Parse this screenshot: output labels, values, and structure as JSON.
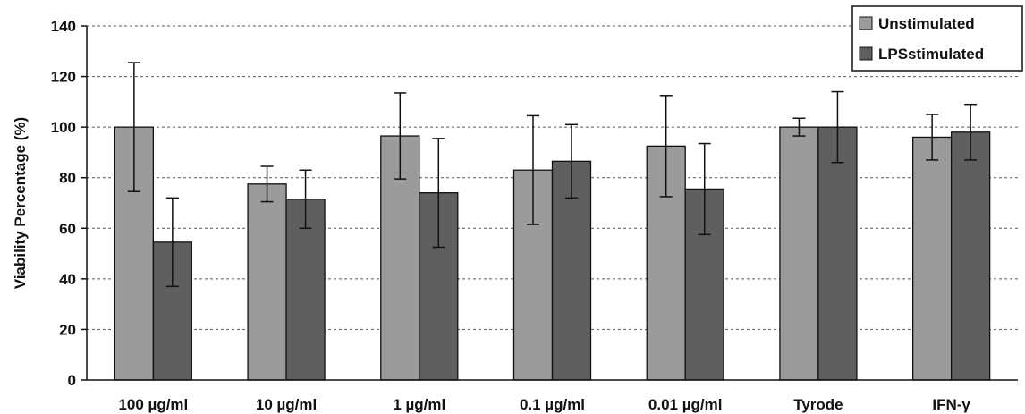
{
  "chart_data": {
    "type": "bar",
    "title": "",
    "xlabel": "",
    "ylabel": "Viability Percentage (%)",
    "ylim": [
      0,
      140
    ],
    "yticks": [
      0,
      20,
      40,
      60,
      80,
      100,
      120,
      140
    ],
    "grid": "horizontal dashed",
    "legend_position": "top-right",
    "categories": [
      "100 µg/ml",
      "10 µg/ml",
      "1 µg/ml",
      "0.1 µg/ml",
      "0.01 µg/ml",
      "Tyrode",
      "IFN-γ"
    ],
    "series": [
      {
        "name": "Unstimulated",
        "color": "#9b9b9b",
        "values": [
          100,
          77.5,
          96.5,
          83,
          92.5,
          100,
          96
        ],
        "errors": [
          25.5,
          7,
          17,
          21.5,
          20,
          3.5,
          9
        ]
      },
      {
        "name": "LPSstimulated",
        "color": "#5f5f5f",
        "values": [
          54.5,
          71.5,
          74,
          86.5,
          75.5,
          100,
          98
        ],
        "errors": [
          17.5,
          11.5,
          21.5,
          14.5,
          18,
          14,
          11
        ]
      }
    ]
  }
}
